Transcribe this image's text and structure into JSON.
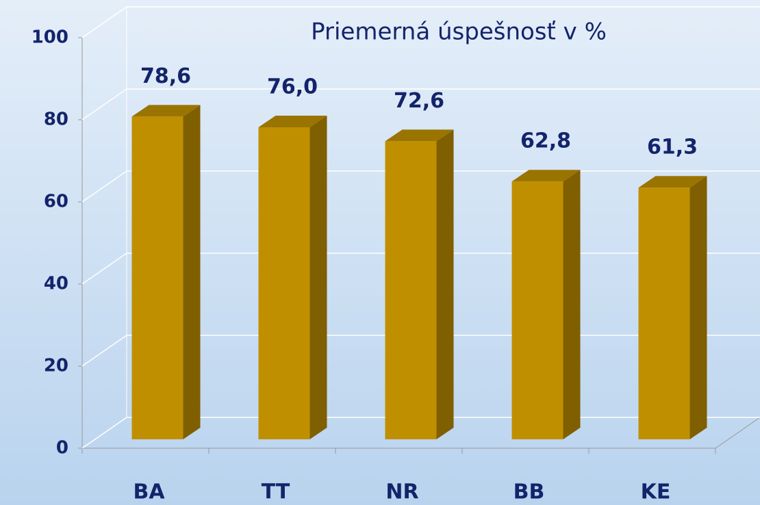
{
  "chart_data": {
    "type": "bar3d",
    "title": "Priemerná úspešnosť v %",
    "categories": [
      "BA",
      "TT",
      "NR",
      "BB",
      "KE"
    ],
    "values": [
      78.6,
      76.0,
      72.6,
      62.8,
      61.3
    ],
    "value_labels": [
      "78,6",
      "76,0",
      "72,6",
      "62,8",
      "61,3"
    ],
    "color": "#c08f00",
    "ylim": [
      0,
      100
    ],
    "yticks": [
      0,
      20,
      40,
      60,
      80,
      100
    ],
    "grid": true
  }
}
